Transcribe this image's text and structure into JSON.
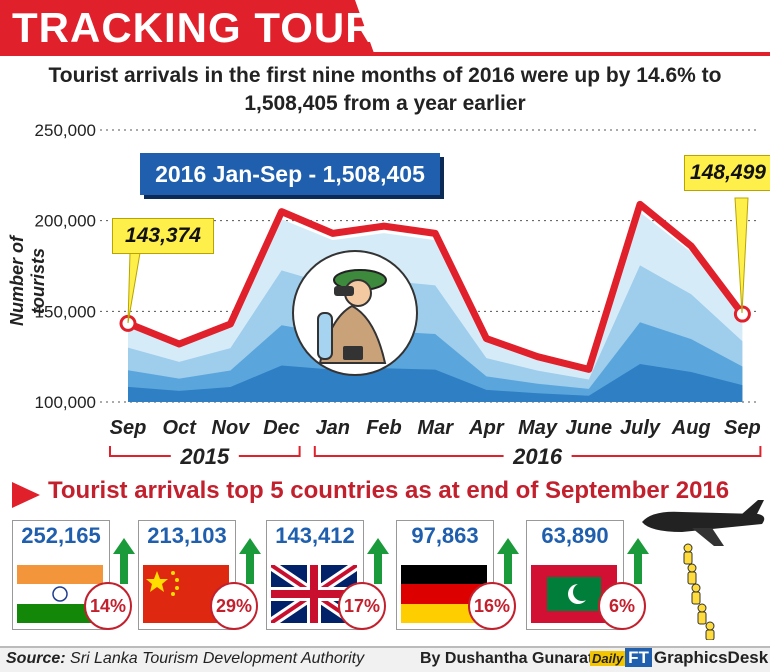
{
  "header": {
    "title": "TRACKING TOURISTS"
  },
  "subtitle": "Tourist arrivals in the first nine months of 2016 were up by 14.6% to 1,508,405 from a year earlier",
  "banner": "2016 Jan-Sep - 1,508,405",
  "callouts": {
    "start": "143,374",
    "end": "148,499"
  },
  "colors": {
    "accent_red": "#e0202a",
    "line": "#e0202a",
    "area_dark": "#2f7fc4",
    "area_light": "#9fcdec",
    "banner": "#1f5fad",
    "callout": "#ffef4a"
  },
  "chart_data": {
    "type": "line",
    "ylabel": "Number of tourists",
    "ylim": [
      100000,
      250000
    ],
    "yticks": [
      "100,000",
      "150,000",
      "200,000",
      "250,000"
    ],
    "ytick_values": [
      100000,
      150000,
      200000,
      250000
    ],
    "categories": [
      "Sep",
      "Oct",
      "Nov",
      "Dec",
      "Jan",
      "Feb",
      "Mar",
      "Apr",
      "May",
      "June",
      "July",
      "Aug",
      "Sep"
    ],
    "values": [
      143374,
      132000,
      143000,
      205000,
      193000,
      197000,
      193000,
      135000,
      125000,
      118000,
      209000,
      186000,
      148499
    ],
    "years": [
      {
        "label": "2015",
        "from": 0,
        "to": 3
      },
      {
        "label": "2016",
        "from": 4,
        "to": 12
      }
    ],
    "grid": "dotted-horizontal"
  },
  "countries": {
    "title": "Tourist arrivals top 5 countries as at end of September 2016",
    "items": [
      {
        "value": "252,165",
        "pct": "14%",
        "flag": "india-flag"
      },
      {
        "value": "213,103",
        "pct": "29%",
        "flag": "china-flag"
      },
      {
        "value": "143,412",
        "pct": "17%",
        "flag": "uk-flag"
      },
      {
        "value": "97,863",
        "pct": "16%",
        "flag": "germany-flag"
      },
      {
        "value": "63,890",
        "pct": "6%",
        "flag": "maldives-flag"
      }
    ]
  },
  "footer": {
    "source_label": "Source:",
    "source_text": "Sri Lanka Tourism Development Authority",
    "credit": "By Dushantha Gunaratne/",
    "brand_a": "Daily",
    "brand_b": "FT",
    "brand_c": "GraphicsDesk"
  }
}
